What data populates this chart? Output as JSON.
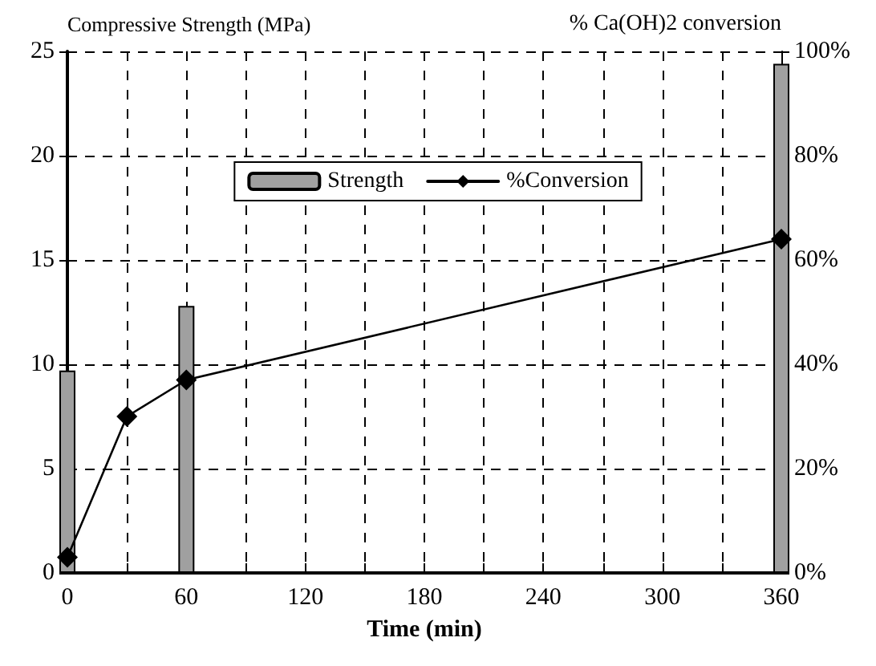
{
  "chart_data": {
    "type": "bar",
    "xlabel": "Time (min)",
    "ylabel": "Compressive Strength (MPa)",
    "y2label": "% Ca(OH)2 conversion",
    "series": [
      {
        "name": "Strength",
        "color": "#a0a0a0",
        "x": [
          0,
          60,
          360
        ],
        "values": [
          9.7,
          12.8,
          24.4
        ]
      },
      {
        "name": "%Conversion",
        "type": "line",
        "axis": "y2",
        "color": "#000000",
        "x": [
          0,
          30,
          60,
          360
        ],
        "values": [
          3,
          30,
          37,
          64
        ]
      }
    ],
    "xlim": [
      0,
      360
    ],
    "xticks": [
      0,
      {
        "value": 30,
        "label": null
      },
      60,
      {
        "value": 90,
        "label": null
      },
      120,
      {
        "value": 150,
        "label": null
      },
      180,
      {
        "value": 210,
        "label": null
      },
      240,
      {
        "value": 270,
        "label": null
      },
      300,
      {
        "value": 330,
        "label": null
      },
      360
    ],
    "ylim": [
      0,
      25
    ],
    "yticks": [
      0,
      5,
      10,
      15,
      20,
      25
    ],
    "y2lim": [
      0,
      100
    ],
    "y2ticks": [
      {
        "value": 0,
        "label": "0%"
      },
      {
        "value": 20,
        "label": "20%"
      },
      {
        "value": 40,
        "label": "40%"
      },
      {
        "value": 60,
        "label": "60%"
      },
      {
        "value": 80,
        "label": "80%"
      },
      {
        "value": 100,
        "label": "100%"
      }
    ],
    "grid": true,
    "legend": "top",
    "marker": "diamond",
    "line_style": "solid"
  }
}
